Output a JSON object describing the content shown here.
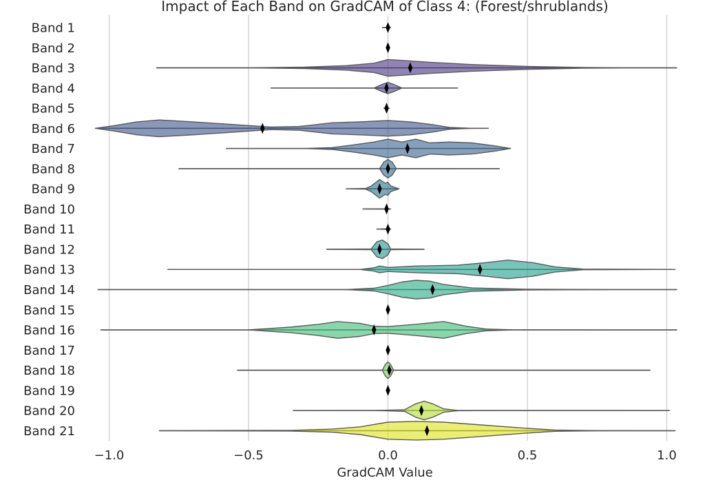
{
  "chart_data": {
    "type": "violin",
    "title": "Impact of Each Band on GradCAM of Class 4: (Forest/shrublands)",
    "xlabel": "GradCAM Value",
    "ylabel": "",
    "xlim": [
      -1.04,
      1.04
    ],
    "xticks": [
      -1.0,
      -0.5,
      0.0,
      0.5,
      1.0
    ],
    "xtick_labels": [
      "−1.0",
      "−0.5",
      "0.0",
      "0.5",
      "1.0"
    ],
    "grid": "vertical",
    "categories": [
      "Band 1",
      "Band 2",
      "Band 3",
      "Band 4",
      "Band 5",
      "Band 6",
      "Band 7",
      "Band 8",
      "Band 9",
      "Band 10",
      "Band 11",
      "Band 12",
      "Band 13",
      "Band 14",
      "Band 15",
      "Band 16",
      "Band 17",
      "Band 18",
      "Band 19",
      "Band 20",
      "Band 21"
    ],
    "colors": [
      "#482677",
      "#482878",
      "#46337e",
      "#443e85",
      "#3f4889",
      "#3b518b",
      "#35608d",
      "#31688e",
      "#2c718e",
      "#287c8e",
      "#24868e",
      "#21918c",
      "#1e9c89",
      "#23a883",
      "#2db27d",
      "#3bbb75",
      "#56c667",
      "#6ece58",
      "#8fd744",
      "#b2dd2e",
      "#dde318"
    ],
    "series": [
      {
        "name": "Band 1",
        "min": -0.02,
        "max": 0.01,
        "mean": 0.0,
        "density": [
          [
            -0.02,
            0.0
          ],
          [
            -0.005,
            0.004
          ],
          [
            0.0,
            0.015
          ],
          [
            0.005,
            0.004
          ],
          [
            0.01,
            0.0
          ]
        ]
      },
      {
        "name": "Band 2",
        "min": -0.005,
        "max": 0.005,
        "mean": 0.0,
        "density": [
          [
            -0.005,
            0.0
          ],
          [
            0.0,
            0.012
          ],
          [
            0.005,
            0.0
          ]
        ]
      },
      {
        "name": "Band 3",
        "min": -0.83,
        "max": 1.04,
        "mean": 0.08,
        "density": [
          [
            -0.83,
            0.0
          ],
          [
            -0.5,
            0.003
          ],
          [
            -0.3,
            0.04
          ],
          [
            -0.15,
            0.12
          ],
          [
            -0.05,
            0.25
          ],
          [
            0.0,
            0.45
          ],
          [
            0.05,
            0.4
          ],
          [
            0.15,
            0.3
          ],
          [
            0.3,
            0.18
          ],
          [
            0.5,
            0.08
          ],
          [
            0.7,
            0.02
          ],
          [
            0.85,
            0.003
          ],
          [
            1.04,
            0.0
          ]
        ]
      },
      {
        "name": "Band 4",
        "min": -0.42,
        "max": 0.25,
        "mean": -0.005,
        "density": [
          [
            -0.42,
            0.0
          ],
          [
            -0.05,
            0.002
          ],
          [
            -0.02,
            0.2
          ],
          [
            0.0,
            0.3
          ],
          [
            0.02,
            0.2
          ],
          [
            0.05,
            0.002
          ],
          [
            0.25,
            0.0
          ]
        ]
      },
      {
        "name": "Band 5",
        "min": -0.015,
        "max": 0.005,
        "mean": -0.005,
        "density": [
          [
            -0.015,
            0.0
          ],
          [
            -0.005,
            0.02
          ],
          [
            0.005,
            0.0
          ]
        ]
      },
      {
        "name": "Band 6",
        "min": -1.05,
        "max": 0.36,
        "mean": -0.45,
        "density": [
          [
            -1.05,
            0.0
          ],
          [
            -0.98,
            0.15
          ],
          [
            -0.9,
            0.35
          ],
          [
            -0.82,
            0.45
          ],
          [
            -0.7,
            0.35
          ],
          [
            -0.55,
            0.2
          ],
          [
            -0.42,
            0.07
          ],
          [
            -0.32,
            0.1
          ],
          [
            -0.2,
            0.3
          ],
          [
            -0.1,
            0.35
          ],
          [
            0.0,
            0.42
          ],
          [
            0.08,
            0.35
          ],
          [
            0.16,
            0.2
          ],
          [
            0.22,
            0.05
          ],
          [
            0.3,
            0.003
          ],
          [
            0.36,
            0.0
          ]
        ]
      },
      {
        "name": "Band 7",
        "min": -0.58,
        "max": 0.44,
        "mean": 0.07,
        "density": [
          [
            -0.58,
            0.0
          ],
          [
            -0.3,
            0.002
          ],
          [
            -0.2,
            0.05
          ],
          [
            -0.12,
            0.2
          ],
          [
            -0.05,
            0.35
          ],
          [
            0.0,
            0.5
          ],
          [
            0.05,
            0.35
          ],
          [
            0.1,
            0.5
          ],
          [
            0.15,
            0.3
          ],
          [
            0.22,
            0.35
          ],
          [
            0.3,
            0.3
          ],
          [
            0.38,
            0.15
          ],
          [
            0.44,
            0.0
          ]
        ]
      },
      {
        "name": "Band 8",
        "min": -0.75,
        "max": 0.4,
        "mean": 0.0,
        "density": [
          [
            -0.75,
            0.0
          ],
          [
            -0.03,
            0.002
          ],
          [
            -0.015,
            0.35
          ],
          [
            0.0,
            0.5
          ],
          [
            0.015,
            0.35
          ],
          [
            0.03,
            0.002
          ],
          [
            0.4,
            0.0
          ]
        ]
      },
      {
        "name": "Band 9",
        "min": -0.15,
        "max": 0.04,
        "mean": -0.03,
        "density": [
          [
            -0.15,
            0.0
          ],
          [
            -0.08,
            0.02
          ],
          [
            -0.06,
            0.15
          ],
          [
            -0.03,
            0.5
          ],
          [
            -0.01,
            0.3
          ],
          [
            0.0,
            0.35
          ],
          [
            0.01,
            0.15
          ],
          [
            0.04,
            0.0
          ]
        ]
      },
      {
        "name": "Band 10",
        "min": -0.09,
        "max": 0.01,
        "mean": -0.005,
        "density": [
          [
            -0.09,
            0.0
          ],
          [
            -0.01,
            0.01
          ],
          [
            -0.005,
            0.03
          ],
          [
            0.01,
            0.0
          ]
        ]
      },
      {
        "name": "Band 11",
        "min": -0.04,
        "max": 0.01,
        "mean": 0.0,
        "density": [
          [
            -0.04,
            0.0
          ],
          [
            -0.005,
            0.02
          ],
          [
            0.0,
            0.05
          ],
          [
            0.01,
            0.0
          ]
        ]
      },
      {
        "name": "Band 12",
        "min": -0.22,
        "max": 0.13,
        "mean": -0.03,
        "density": [
          [
            -0.22,
            0.0
          ],
          [
            -0.06,
            0.02
          ],
          [
            -0.04,
            0.4
          ],
          [
            -0.02,
            0.5
          ],
          [
            0.0,
            0.3
          ],
          [
            0.01,
            0.02
          ],
          [
            0.13,
            0.0
          ]
        ]
      },
      {
        "name": "Band 13",
        "min": -0.79,
        "max": 1.03,
        "mean": 0.33,
        "density": [
          [
            -0.79,
            0.0
          ],
          [
            -0.1,
            0.003
          ],
          [
            -0.05,
            0.1
          ],
          [
            -0.03,
            0.2
          ],
          [
            0.0,
            0.12
          ],
          [
            0.1,
            0.2
          ],
          [
            0.25,
            0.25
          ],
          [
            0.35,
            0.4
          ],
          [
            0.43,
            0.55
          ],
          [
            0.52,
            0.4
          ],
          [
            0.6,
            0.15
          ],
          [
            0.7,
            0.02
          ],
          [
            1.03,
            0.0
          ]
        ]
      },
      {
        "name": "Band 14",
        "min": -1.04,
        "max": 1.04,
        "mean": 0.16,
        "density": [
          [
            -1.04,
            0.0
          ],
          [
            -0.15,
            0.003
          ],
          [
            -0.05,
            0.08
          ],
          [
            0.0,
            0.25
          ],
          [
            0.05,
            0.45
          ],
          [
            0.1,
            0.55
          ],
          [
            0.15,
            0.5
          ],
          [
            0.2,
            0.3
          ],
          [
            0.3,
            0.1
          ],
          [
            0.5,
            0.02
          ],
          [
            0.8,
            0.005
          ],
          [
            1.04,
            0.0
          ]
        ]
      },
      {
        "name": "Band 15",
        "min": -0.005,
        "max": 0.005,
        "mean": 0.0,
        "density": [
          [
            -0.005,
            0.0
          ],
          [
            0.0,
            0.02
          ],
          [
            0.005,
            0.0
          ]
        ]
      },
      {
        "name": "Band 16",
        "min": -1.03,
        "max": 1.04,
        "mean": -0.05,
        "density": [
          [
            -1.03,
            0.0
          ],
          [
            -0.5,
            0.003
          ],
          [
            -0.35,
            0.15
          ],
          [
            -0.25,
            0.3
          ],
          [
            -0.18,
            0.45
          ],
          [
            -0.1,
            0.35
          ],
          [
            -0.05,
            0.2
          ],
          [
            0.0,
            0.18
          ],
          [
            0.1,
            0.3
          ],
          [
            0.2,
            0.45
          ],
          [
            0.28,
            0.2
          ],
          [
            0.35,
            0.05
          ],
          [
            0.45,
            0.003
          ],
          [
            1.04,
            0.0
          ]
        ]
      },
      {
        "name": "Band 17",
        "min": -0.005,
        "max": 0.005,
        "mean": 0.0,
        "density": [
          [
            -0.005,
            0.0
          ],
          [
            0.0,
            0.02
          ],
          [
            0.005,
            0.0
          ]
        ]
      },
      {
        "name": "Band 18",
        "min": -0.54,
        "max": 0.94,
        "mean": 0.005,
        "density": [
          [
            -0.54,
            0.0
          ],
          [
            -0.02,
            0.002
          ],
          [
            -0.01,
            0.3
          ],
          [
            0.0,
            0.45
          ],
          [
            0.01,
            0.3
          ],
          [
            0.02,
            0.002
          ],
          [
            0.94,
            0.0
          ]
        ]
      },
      {
        "name": "Band 19",
        "min": -0.005,
        "max": 0.005,
        "mean": 0.0,
        "density": [
          [
            -0.005,
            0.0
          ],
          [
            0.0,
            0.02
          ],
          [
            0.005,
            0.0
          ]
        ]
      },
      {
        "name": "Band 20",
        "min": -0.34,
        "max": 1.01,
        "mean": 0.12,
        "density": [
          [
            -0.34,
            0.0
          ],
          [
            -0.05,
            0.003
          ],
          [
            0.0,
            0.02
          ],
          [
            0.06,
            0.05
          ],
          [
            0.1,
            0.4
          ],
          [
            0.13,
            0.55
          ],
          [
            0.16,
            0.4
          ],
          [
            0.2,
            0.1
          ],
          [
            0.25,
            0.01
          ],
          [
            0.4,
            0.002
          ],
          [
            1.01,
            0.0
          ]
        ]
      },
      {
        "name": "Band 21",
        "min": -0.82,
        "max": 1.03,
        "mean": 0.14,
        "density": [
          [
            -0.82,
            0.0
          ],
          [
            -0.35,
            0.02
          ],
          [
            -0.2,
            0.1
          ],
          [
            -0.1,
            0.25
          ],
          [
            0.0,
            0.55
          ],
          [
            0.1,
            0.6
          ],
          [
            0.2,
            0.55
          ],
          [
            0.35,
            0.35
          ],
          [
            0.5,
            0.15
          ],
          [
            0.6,
            0.04
          ],
          [
            0.75,
            0.005
          ],
          [
            1.0,
            0.002
          ],
          [
            1.03,
            0.0
          ]
        ]
      }
    ]
  }
}
